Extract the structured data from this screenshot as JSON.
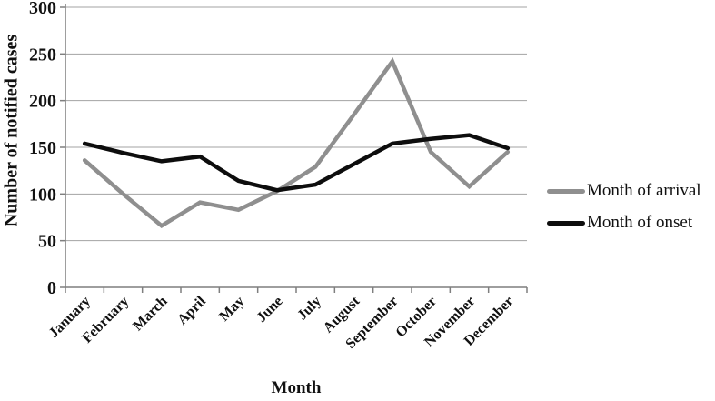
{
  "chart_data": {
    "type": "line",
    "title": "",
    "xlabel": "Month",
    "ylabel": "Number of notified cases",
    "ylim": [
      0,
      300
    ],
    "y_ticks": [
      0,
      50,
      100,
      150,
      200,
      250,
      300
    ],
    "grid": "horizontal",
    "legend_position": "right",
    "categories": [
      "January",
      "February",
      "March",
      "April",
      "May",
      "June",
      "July",
      "August",
      "September",
      "October",
      "November",
      "December"
    ],
    "series": [
      {
        "name": "Month of arrival",
        "color": "#8f8f8f",
        "values": [
          136,
          100,
          66,
          91,
          83,
          103,
          129,
          185,
          242,
          145,
          108,
          145
        ]
      },
      {
        "name": "Month of onset",
        "color": "#0d0d0d",
        "values": [
          154,
          144,
          135,
          140,
          114,
          104,
          110,
          132,
          154,
          159,
          163,
          149
        ]
      }
    ],
    "style": {
      "gridline_color": "#a3a3a3",
      "axis_color": "#7f7f7f",
      "label_color": "#111111",
      "line_width": 4.5
    }
  }
}
